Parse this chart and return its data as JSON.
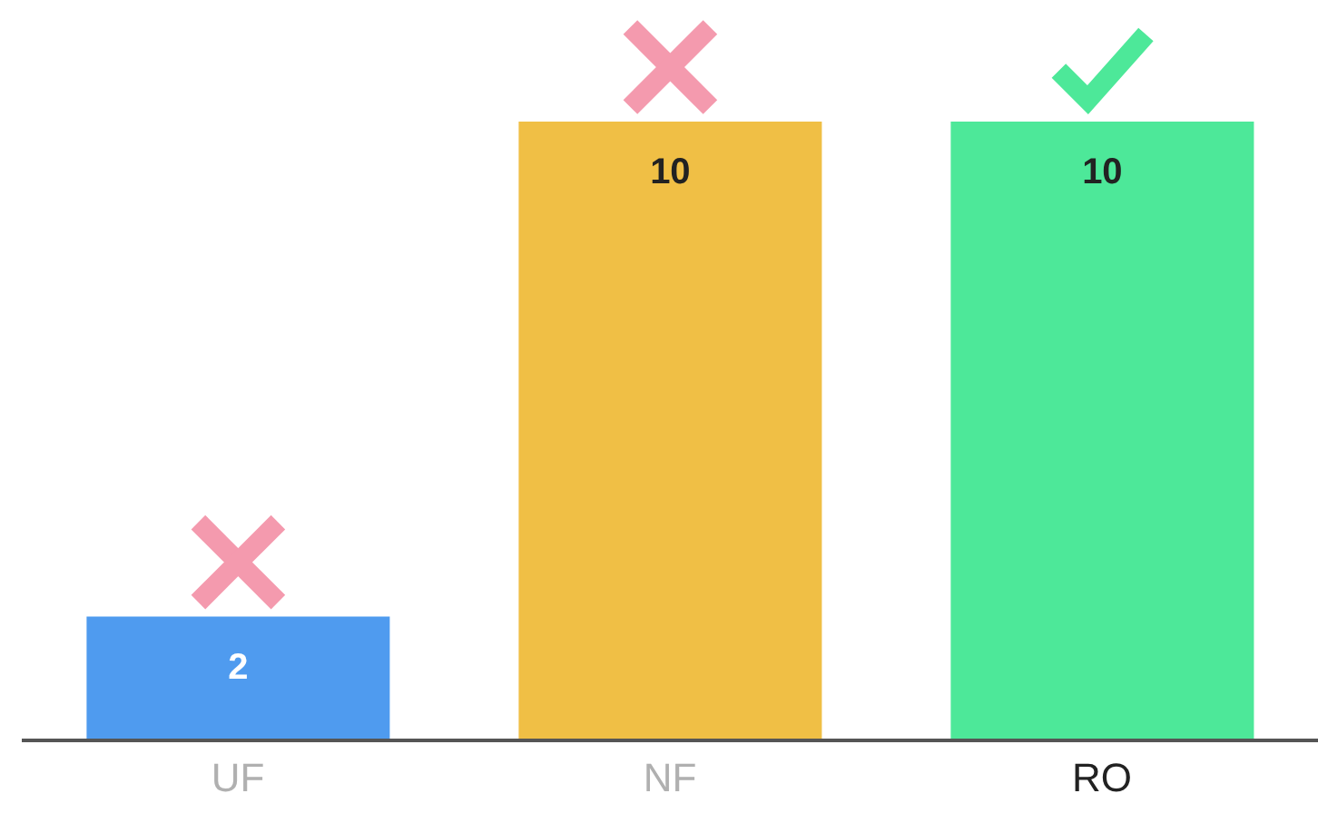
{
  "chart_data": {
    "type": "bar",
    "categories": [
      "UF",
      "NF",
      "RO"
    ],
    "values": [
      2,
      10,
      10
    ],
    "colors": [
      "#4f9bef",
      "#f0bf45",
      "#4de899"
    ],
    "data_labels": true
  }
}
